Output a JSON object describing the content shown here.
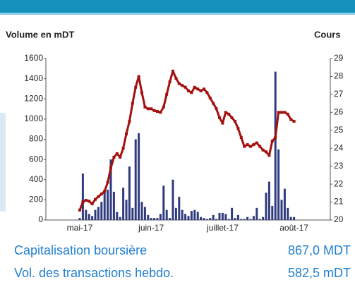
{
  "chart_data": {
    "type": "bar_line",
    "y_label": "Volume en mDT",
    "y2_label": "Cours",
    "categories": [
      "mai-17",
      null,
      null,
      null,
      null,
      null,
      null,
      null,
      null,
      null,
      null,
      null,
      null,
      null,
      null,
      null,
      null,
      null,
      null,
      null,
      null,
      null,
      null,
      "juin-17",
      null,
      null,
      null,
      null,
      null,
      null,
      null,
      null,
      null,
      null,
      null,
      null,
      null,
      null,
      null,
      null,
      null,
      null,
      null,
      null,
      null,
      null,
      "juillet-17",
      null,
      null,
      null,
      null,
      null,
      null,
      null,
      null,
      null,
      null,
      null,
      null,
      null,
      null,
      null,
      null,
      null,
      null,
      null,
      null,
      null,
      null,
      "août-17"
    ],
    "series": [
      {
        "type": "bar",
        "color": "#2f3b7e",
        "values": [
          20,
          460,
          100,
          60,
          40,
          100,
          130,
          180,
          300,
          300,
          600,
          280,
          80,
          30,
          320,
          200,
          530,
          120,
          800,
          860,
          180,
          130,
          50,
          20,
          20,
          20,
          60,
          340,
          100,
          20,
          400,
          120,
          230,
          100,
          60,
          40,
          90,
          100,
          80,
          30,
          20,
          10,
          20,
          50,
          10,
          70,
          70,
          60,
          10,
          120,
          20,
          50,
          10,
          10,
          30,
          10,
          40,
          120,
          10,
          30,
          270,
          380,
          140,
          1470,
          700,
          200,
          310,
          120,
          30,
          30
        ]
      },
      {
        "type": "line",
        "axis": "y2",
        "color": "#a3100f",
        "values": [
          20.55,
          21.0,
          21.1,
          21.05,
          20.9,
          21.15,
          21.3,
          21.45,
          21.6,
          22.1,
          22.9,
          23.5,
          23.7,
          23.5,
          24.0,
          24.8,
          25.5,
          26.5,
          27.4,
          28.0,
          27.1,
          26.3,
          26.2,
          26.2,
          26.1,
          26.05,
          26.0,
          26.3,
          27.0,
          27.7,
          28.3,
          27.9,
          27.6,
          27.5,
          27.4,
          27.2,
          27.1,
          27.4,
          27.3,
          27.2,
          27.3,
          27.1,
          26.8,
          26.5,
          26.2,
          25.7,
          25.4,
          26.0,
          25.9,
          25.7,
          25.5,
          25.1,
          24.6,
          24.1,
          24.2,
          24.1,
          24.2,
          24.3,
          24.1,
          23.9,
          23.8,
          23.6,
          24.4,
          24.6,
          26.0,
          26.0,
          26.0,
          25.9,
          25.6,
          25.5
        ]
      }
    ],
    "ylim": [
      0,
      1600
    ],
    "yticks": [
      0,
      200,
      400,
      600,
      800,
      1000,
      1200,
      1400,
      1600
    ],
    "y2lim": [
      20,
      29
    ],
    "y2ticks": [
      20,
      21,
      22,
      23,
      24,
      25,
      26,
      27,
      28,
      29
    ]
  },
  "summary": [
    {
      "label": "Capitalisation boursière",
      "value": "867,0 MDT"
    },
    {
      "label": "Vol. des transactions hebdo.",
      "value": "582,5 mDT"
    }
  ]
}
